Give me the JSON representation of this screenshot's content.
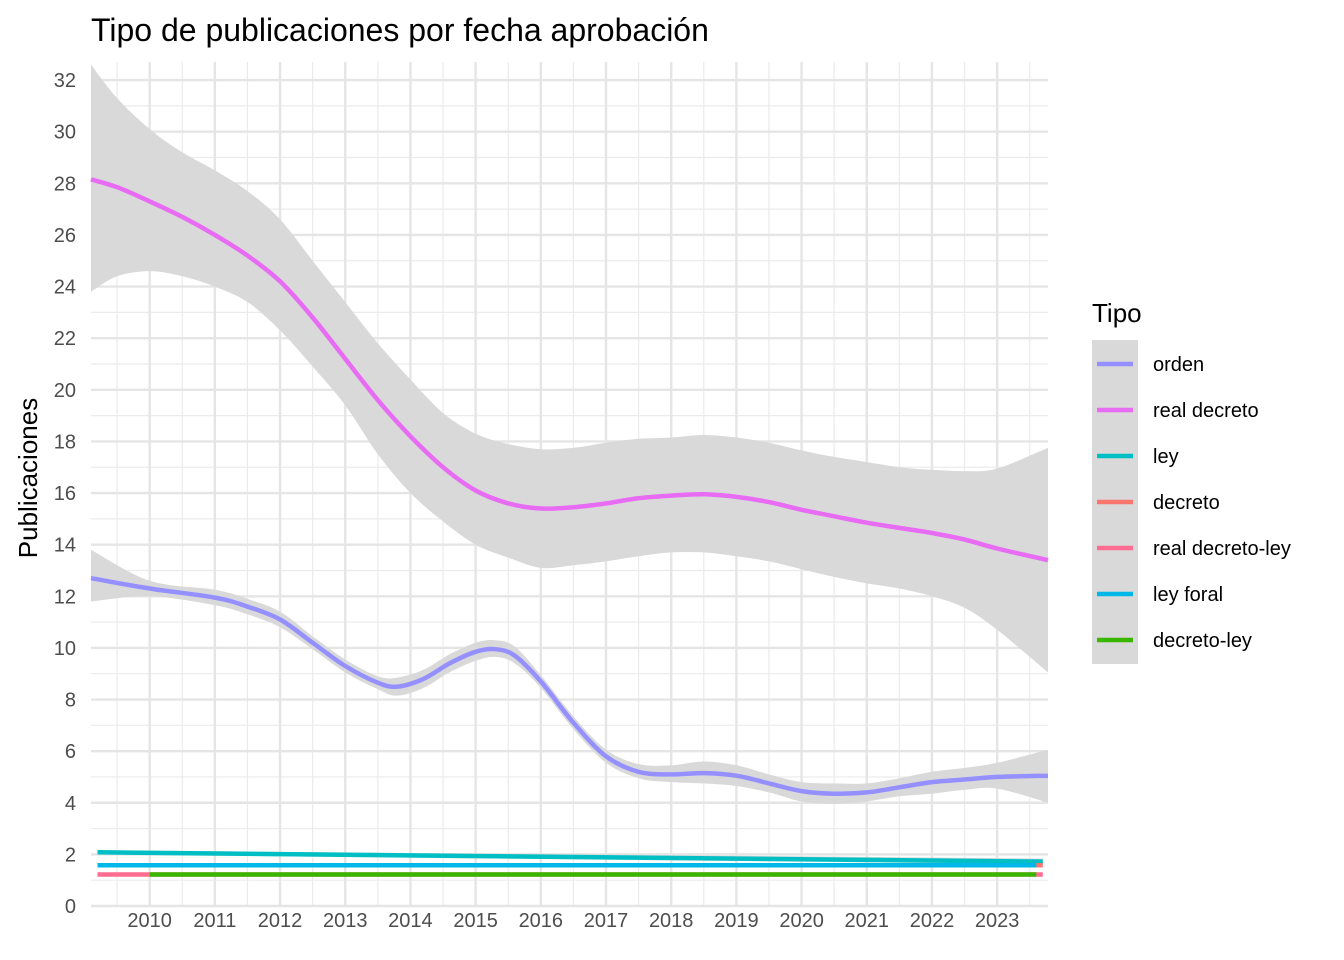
{
  "chart_data": {
    "type": "line",
    "title": "Tipo de publicaciones por fecha aprobación",
    "xlabel": "",
    "ylabel": "Publicaciones",
    "xlim": [
      2009.1,
      2023.78
    ],
    "ylim": [
      0,
      32.7
    ],
    "x_ticks": [
      2010,
      2011,
      2012,
      2013,
      2014,
      2015,
      2016,
      2017,
      2018,
      2019,
      2020,
      2021,
      2022,
      2023
    ],
    "y_ticks": [
      0,
      2,
      4,
      6,
      8,
      10,
      12,
      14,
      16,
      18,
      20,
      22,
      24,
      26,
      28,
      30,
      32
    ],
    "grid": true,
    "confidence_band_color": "#d9d9d9",
    "legend": {
      "title": "Tipo",
      "position": "right",
      "entries": [
        {
          "label": "orden",
          "color": "#9590FF"
        },
        {
          "label": "real decreto",
          "color": "#E76BF3"
        },
        {
          "label": "ley",
          "color": "#00BFC4"
        },
        {
          "label": "decreto",
          "color": "#F8766D"
        },
        {
          "label": "real decreto-ley",
          "color": "#FF6C91"
        },
        {
          "label": "ley foral",
          "color": "#00B8E7"
        },
        {
          "label": "decreto-ley",
          "color": "#39B600"
        }
      ]
    },
    "series": [
      {
        "name": "orden",
        "color": "#9590FF",
        "x": [
          2009.1,
          2010.0,
          2011.0,
          2011.5,
          2012.0,
          2012.5,
          2013.0,
          2013.5,
          2013.8,
          2014.2,
          2014.6,
          2015.0,
          2015.3,
          2015.6,
          2016.0,
          2016.5,
          2017.0,
          2017.5,
          2018.0,
          2018.5,
          2019.0,
          2019.5,
          2020.0,
          2020.5,
          2021.0,
          2021.5,
          2022.0,
          2022.5,
          2023.0,
          2023.78
        ],
        "y": [
          12.7,
          12.3,
          11.95,
          11.6,
          11.1,
          10.2,
          9.3,
          8.65,
          8.5,
          8.8,
          9.4,
          9.85,
          9.95,
          9.7,
          8.7,
          7.1,
          5.8,
          5.2,
          5.1,
          5.15,
          5.05,
          4.75,
          4.45,
          4.35,
          4.4,
          4.6,
          4.8,
          4.9,
          5.0,
          5.05
        ],
        "band_lower": [
          11.8,
          12.0,
          11.65,
          11.3,
          10.8,
          9.95,
          9.05,
          8.4,
          8.15,
          8.45,
          9.05,
          9.5,
          9.65,
          9.4,
          8.45,
          6.85,
          5.55,
          4.95,
          4.8,
          4.75,
          4.65,
          4.4,
          4.05,
          3.95,
          4.05,
          4.25,
          4.35,
          4.5,
          4.55,
          4.0
        ],
        "band_upper": [
          13.8,
          12.6,
          12.25,
          11.9,
          11.4,
          10.45,
          9.55,
          8.9,
          8.85,
          9.15,
          9.75,
          10.2,
          10.3,
          10.05,
          8.95,
          7.35,
          6.05,
          5.5,
          5.45,
          5.6,
          5.45,
          5.1,
          4.8,
          4.75,
          4.75,
          4.95,
          5.2,
          5.35,
          5.55,
          6.05
        ]
      },
      {
        "name": "real decreto",
        "color": "#E76BF3",
        "x": [
          2009.1,
          2009.5,
          2010.0,
          2010.5,
          2011.0,
          2011.5,
          2012.0,
          2012.5,
          2013.0,
          2013.5,
          2014.0,
          2014.5,
          2015.0,
          2015.5,
          2016.0,
          2016.5,
          2017.0,
          2017.5,
          2018.0,
          2018.5,
          2019.0,
          2019.5,
          2020.0,
          2020.5,
          2021.0,
          2021.5,
          2022.0,
          2022.5,
          2023.0,
          2023.78
        ],
        "y": [
          28.15,
          27.85,
          27.3,
          26.7,
          26.0,
          25.2,
          24.2,
          22.8,
          21.2,
          19.6,
          18.2,
          17.0,
          16.1,
          15.6,
          15.4,
          15.45,
          15.6,
          15.8,
          15.9,
          15.95,
          15.85,
          15.65,
          15.35,
          15.1,
          14.85,
          14.65,
          14.45,
          14.2,
          13.85,
          13.4
        ],
        "band_lower": [
          23.8,
          24.4,
          24.6,
          24.4,
          24.0,
          23.4,
          22.3,
          20.9,
          19.4,
          17.5,
          16.0,
          14.9,
          14.0,
          13.5,
          13.1,
          13.2,
          13.35,
          13.55,
          13.7,
          13.7,
          13.55,
          13.35,
          13.05,
          12.75,
          12.5,
          12.3,
          12.0,
          11.55,
          10.7,
          9.05
        ],
        "band_upper": [
          32.6,
          31.3,
          30.1,
          29.2,
          28.5,
          27.7,
          26.6,
          25.0,
          23.4,
          21.8,
          20.4,
          19.1,
          18.3,
          17.9,
          17.7,
          17.75,
          17.95,
          18.1,
          18.15,
          18.25,
          18.15,
          17.95,
          17.65,
          17.4,
          17.2,
          17.0,
          16.9,
          16.85,
          16.95,
          17.75
        ]
      },
      {
        "name": "ley",
        "color": "#00BFC4",
        "x": [
          2009.2,
          2023.7
        ],
        "y": [
          2.08,
          1.72
        ],
        "band_lower": [
          2.0,
          1.62
        ],
        "band_upper": [
          2.16,
          1.84
        ]
      },
      {
        "name": "decreto",
        "color": "#F8766D",
        "x": [
          2023.5,
          2023.7
        ],
        "y": [
          1.58,
          1.58
        ]
      },
      {
        "name": "real decreto-ley",
        "color": "#FF6C91",
        "x": [
          2009.2,
          2023.7
        ],
        "y": [
          1.22,
          1.22
        ]
      },
      {
        "name": "ley foral",
        "color": "#00B8E7",
        "x": [
          2009.2,
          2023.6
        ],
        "y": [
          1.58,
          1.58
        ]
      },
      {
        "name": "decreto-ley",
        "color": "#39B600",
        "x": [
          2010.0,
          2023.6
        ],
        "y": [
          1.22,
          1.22
        ]
      }
    ]
  }
}
